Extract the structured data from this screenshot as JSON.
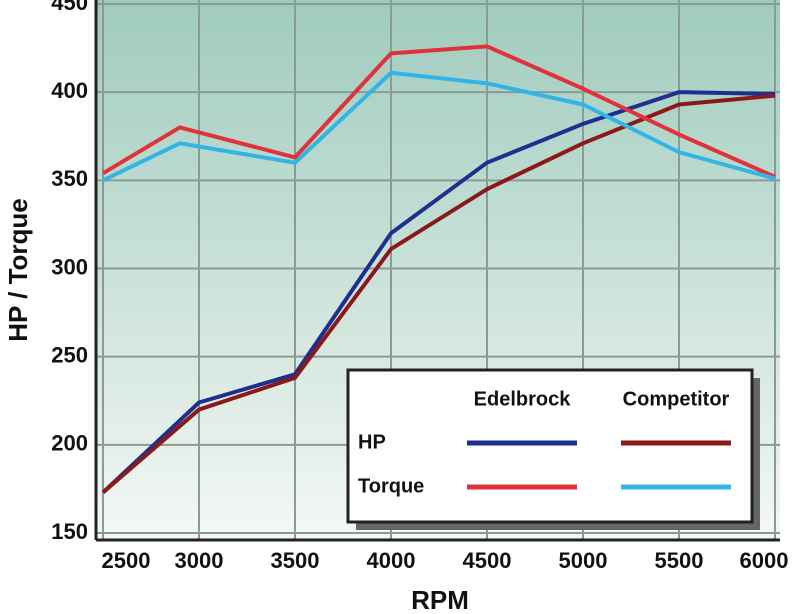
{
  "chart_data": {
    "type": "line",
    "x_label": "RPM",
    "y_label": "HP / Torque",
    "xlim": [
      2500,
      6000
    ],
    "ylim": [
      150,
      450
    ],
    "xticks": [
      2500,
      3000,
      3500,
      4000,
      4500,
      5000,
      5500,
      6000
    ],
    "yticks": [
      150,
      200,
      250,
      300,
      350,
      400,
      450
    ],
    "grid": true,
    "legend": {
      "columns": [
        "Edelbrock",
        "Competitor"
      ],
      "rows": [
        "HP",
        "Torque"
      ]
    },
    "series": [
      [
        {
          "color": "#1f2f8f",
          "x": [
            2500,
            3000,
            3500,
            4000,
            4500,
            5000,
            5500,
            6000
          ],
          "values": [
            173,
            224,
            240,
            320,
            360,
            382,
            400,
            399
          ]
        },
        {
          "color": "#8a1a1a",
          "x": [
            2500,
            3000,
            3500,
            4000,
            4500,
            5000,
            5500,
            6000
          ],
          "values": [
            173,
            220,
            238,
            311,
            345,
            371,
            393,
            398
          ]
        }
      ],
      [
        {
          "color": "#e0323a",
          "x": [
            2500,
            2900,
            3500,
            4000,
            4500,
            5000,
            5500,
            6000
          ],
          "values": [
            354,
            380,
            363,
            422,
            426,
            402,
            376,
            352
          ]
        },
        {
          "color": "#32b4e6",
          "x": [
            2500,
            2900,
            3500,
            4000,
            4500,
            5000,
            5500,
            6000
          ],
          "values": [
            350,
            371,
            360,
            411,
            405,
            393,
            366,
            351
          ]
        }
      ]
    ]
  }
}
